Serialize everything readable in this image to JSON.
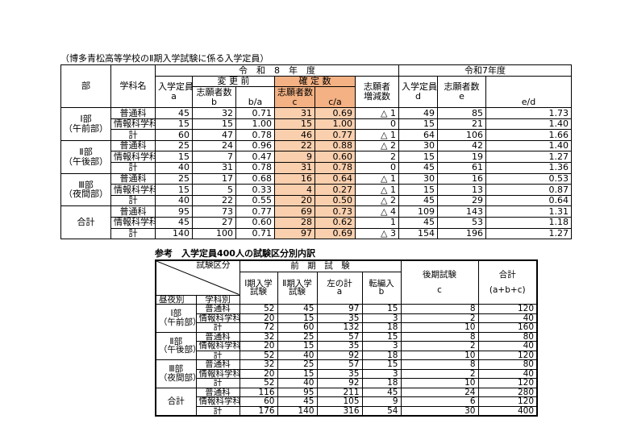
{
  "table1": {
    "caption": "（博多青松高等学校のⅡ期入学試験に係る入学定員）",
    "header": {
      "dept": "部",
      "course": "学科名",
      "year8": "令　和　8　年　度",
      "year7": "令和7年度",
      "capA": [
        "入学定員",
        "a"
      ],
      "before": "変 更 前",
      "confirmed": "確 定 数",
      "change": [
        "志願者",
        "増減数"
      ],
      "capD": [
        "入学定員",
        "d"
      ],
      "appE": [
        "志願者数",
        "e"
      ],
      "ratioED": "e/d",
      "appB": [
        "志願者数",
        "b"
      ],
      "ratioBA": "b/a",
      "appC": [
        "志願者数",
        "c"
      ],
      "ratioCA": "c/a"
    },
    "groups": [
      {
        "label": [
          "Ⅰ部",
          "（午前部）"
        ],
        "rows": [
          [
            "普通科",
            "45",
            "32",
            "0.71",
            "31",
            "0.69",
            "△ 1",
            "49",
            "85",
            "1.73"
          ],
          [
            "情報科学科",
            "15",
            "15",
            "1.00",
            "15",
            "1.00",
            "0",
            "15",
            "21",
            "1.40"
          ],
          [
            "計",
            "60",
            "47",
            "0.78",
            "46",
            "0.77",
            "△ 1",
            "64",
            "106",
            "1.66"
          ]
        ]
      },
      {
        "label": [
          "Ⅱ部",
          "（午後部）"
        ],
        "rows": [
          [
            "普通科",
            "25",
            "24",
            "0.96",
            "22",
            "0.88",
            "△ 2",
            "30",
            "42",
            "1.40"
          ],
          [
            "情報科学科",
            "15",
            "7",
            "0.47",
            "9",
            "0.60",
            "2",
            "15",
            "19",
            "1.27"
          ],
          [
            "計",
            "40",
            "31",
            "0.78",
            "31",
            "0.78",
            "0",
            "45",
            "61",
            "1.36"
          ]
        ]
      },
      {
        "label": [
          "Ⅲ部",
          "（夜間部）"
        ],
        "rows": [
          [
            "普通科",
            "25",
            "17",
            "0.68",
            "16",
            "0.64",
            "△ 1",
            "30",
            "16",
            "0.53"
          ],
          [
            "情報科学科",
            "15",
            "5",
            "0.33",
            "4",
            "0.27",
            "△ 1",
            "15",
            "13",
            "0.87"
          ],
          [
            "計",
            "40",
            "22",
            "0.55",
            "20",
            "0.50",
            "△ 2",
            "45",
            "29",
            "0.64"
          ]
        ]
      },
      {
        "label": [
          "合計"
        ],
        "rows": [
          [
            "普通科",
            "95",
            "73",
            "0.77",
            "69",
            "0.73",
            "△ 4",
            "109",
            "143",
            "1.31"
          ],
          [
            "情報科学科",
            "45",
            "27",
            "0.60",
            "28",
            "0.62",
            "1",
            "45",
            "53",
            "1.18"
          ],
          [
            "計",
            "140",
            "100",
            "0.71",
            "97",
            "0.69",
            "△ 3",
            "154",
            "196",
            "1.27"
          ]
        ]
      }
    ]
  },
  "table2": {
    "caption": "参考　入学定員400人の試験区分別内訳",
    "header": {
      "examType": "試験区分",
      "dayNight": "昼夜別",
      "course": "学科別",
      "early": "前　期　試　験",
      "late": [
        "後期試験",
        "c"
      ],
      "total": [
        "合計",
        "(a+b+c)"
      ],
      "first": [
        "Ⅰ期入学",
        "試験"
      ],
      "second": [
        "Ⅱ期入学",
        "試験"
      ],
      "sum": [
        "左の計",
        "a"
      ],
      "transfer": [
        "転編入",
        "b"
      ]
    },
    "groups": [
      {
        "label": [
          "Ⅰ部",
          "（午前部）"
        ],
        "rows": [
          [
            "普通科",
            "52",
            "45",
            "97",
            "15",
            "8",
            "120"
          ],
          [
            "情報科学科",
            "20",
            "15",
            "35",
            "3",
            "2",
            "40"
          ],
          [
            "計",
            "72",
            "60",
            "132",
            "18",
            "10",
            "160"
          ]
        ]
      },
      {
        "label": [
          "Ⅱ部",
          "（午後部）"
        ],
        "rows": [
          [
            "普通科",
            "32",
            "25",
            "57",
            "15",
            "8",
            "80"
          ],
          [
            "情報科学科",
            "20",
            "15",
            "35",
            "3",
            "2",
            "40"
          ],
          [
            "計",
            "52",
            "40",
            "92",
            "18",
            "10",
            "120"
          ]
        ]
      },
      {
        "label": [
          "Ⅲ部",
          "（夜間部）"
        ],
        "rows": [
          [
            "普通科",
            "32",
            "25",
            "57",
            "15",
            "8",
            "80"
          ],
          [
            "情報科学科",
            "20",
            "15",
            "35",
            "3",
            "2",
            "40"
          ],
          [
            "計",
            "52",
            "40",
            "92",
            "18",
            "10",
            "120"
          ]
        ]
      },
      {
        "label": [
          "合計"
        ],
        "rows": [
          [
            "普通科",
            "116",
            "95",
            "211",
            "45",
            "24",
            "280"
          ],
          [
            "情報科学科",
            "60",
            "45",
            "105",
            "9",
            "6",
            "120"
          ],
          [
            "計",
            "176",
            "140",
            "316",
            "54",
            "30",
            "400"
          ]
        ]
      }
    ]
  }
}
